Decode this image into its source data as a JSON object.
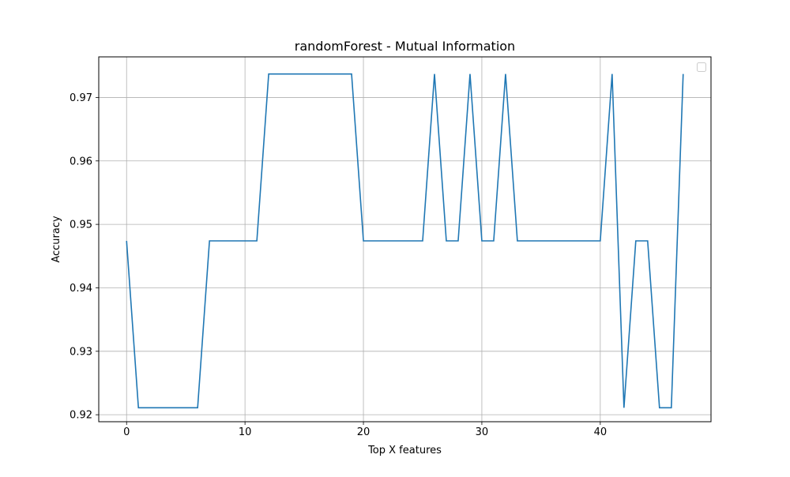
{
  "chart_data": {
    "type": "line",
    "title": "randomForest - Mutual Information",
    "xlabel": "Top X features",
    "ylabel": "Accuracy",
    "xlim": [
      -2.35,
      49.35
    ],
    "ylim": [
      0.9189,
      0.9764
    ],
    "xticks": [
      0,
      10,
      20,
      30,
      40
    ],
    "xtick_labels": [
      "0",
      "10",
      "20",
      "30",
      "40"
    ],
    "yticks": [
      0.92,
      0.93,
      0.94,
      0.95,
      0.96,
      0.97
    ],
    "ytick_labels": [
      "0.92",
      "0.93",
      "0.94",
      "0.95",
      "0.96",
      "0.97"
    ],
    "grid": true,
    "legend": "upper right (empty)",
    "series": [
      {
        "color": "#1f77b4",
        "x": [
          0,
          1,
          2,
          3,
          4,
          5,
          6,
          7,
          8,
          9,
          10,
          11,
          12,
          13,
          14,
          15,
          16,
          17,
          18,
          19,
          20,
          21,
          22,
          23,
          24,
          25,
          26,
          27,
          28,
          29,
          30,
          31,
          32,
          33,
          34,
          35,
          36,
          37,
          38,
          39,
          40,
          41,
          42,
          43,
          44,
          45,
          46,
          47
        ],
        "y": [
          0.9474,
          0.9211,
          0.9211,
          0.9211,
          0.9211,
          0.9211,
          0.9211,
          0.9474,
          0.9474,
          0.9474,
          0.9474,
          0.9474,
          0.9737,
          0.9737,
          0.9737,
          0.9737,
          0.9737,
          0.9737,
          0.9737,
          0.9737,
          0.9474,
          0.9474,
          0.9474,
          0.9474,
          0.9474,
          0.9474,
          0.9737,
          0.9474,
          0.9474,
          0.9737,
          0.9474,
          0.9474,
          0.9737,
          0.9474,
          0.9474,
          0.9474,
          0.9474,
          0.9474,
          0.9474,
          0.9474,
          0.9474,
          0.9737,
          0.9211,
          0.9474,
          0.9474,
          0.9211,
          0.9211,
          0.9737
        ]
      }
    ]
  }
}
